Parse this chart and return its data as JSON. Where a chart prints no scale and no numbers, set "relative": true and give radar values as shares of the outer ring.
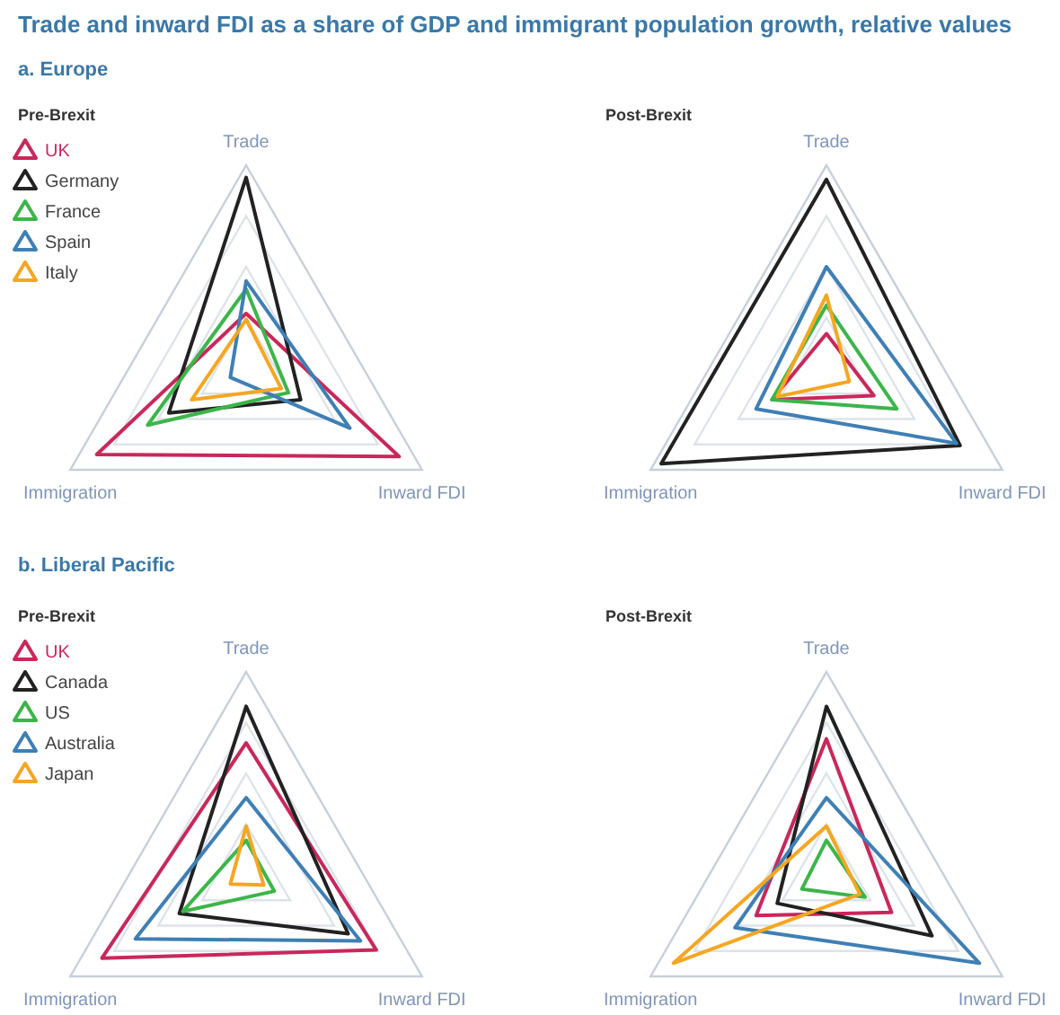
{
  "chart_data": [
    {
      "type": "radar",
      "title": "Pre-Brexit",
      "annotations": [
        "Trade and inward FDI as a share of GDP and immigrant population growth, relative values",
        "a. Europe"
      ],
      "categories": [
        "Trade",
        "Inward FDI",
        "Immigration"
      ],
      "relative": true,
      "grid": true,
      "legend": "top left",
      "series": [
        {
          "name": "UK",
          "color": "#c8285a",
          "values": [
            0.27,
            0.87,
            0.85
          ]
        },
        {
          "name": "Germany",
          "color": "#222222",
          "values": [
            0.94,
            0.31,
            0.44
          ]
        },
        {
          "name": "France",
          "color": "#3cb54a",
          "values": [
            0.39,
            0.24,
            0.56
          ]
        },
        {
          "name": "Spain",
          "color": "#3f7fb4",
          "values": [
            0.43,
            0.59,
            0.09
          ]
        },
        {
          "name": "Italy",
          "color": "#f5a623",
          "values": [
            0.24,
            0.2,
            0.31
          ]
        }
      ]
    },
    {
      "type": "radar",
      "title": "Post-Brexit",
      "categories": [
        "Trade",
        "Inward FDI",
        "Immigration"
      ],
      "relative": true,
      "grid": true,
      "series": [
        {
          "color": "#c8285a",
          "values": [
            0.17,
            0.27,
            0.31
          ]
        },
        {
          "color": "#222222",
          "values": [
            0.93,
            0.76,
            0.94
          ]
        },
        {
          "color": "#3cb54a",
          "values": [
            0.31,
            0.4,
            0.31
          ]
        },
        {
          "color": "#3f7fb4",
          "values": [
            0.5,
            0.74,
            0.4
          ]
        },
        {
          "color": "#f5a623",
          "values": [
            0.36,
            0.13,
            0.28
          ]
        }
      ]
    },
    {
      "type": "radar",
      "title": "Pre-Brexit",
      "annotations": [
        "b. Liberal Pacific"
      ],
      "categories": [
        "Trade",
        "Inward FDI",
        "Immigration"
      ],
      "relative": true,
      "grid": true,
      "legend": "top left",
      "series": [
        {
          "name": "UK",
          "color": "#c8285a",
          "values": [
            0.65,
            0.74,
            0.82
          ]
        },
        {
          "name": "Canada",
          "color": "#222222",
          "values": [
            0.83,
            0.58,
            0.38
          ]
        },
        {
          "name": "US",
          "color": "#3cb54a",
          "values": [
            0.17,
            0.16,
            0.36
          ]
        },
        {
          "name": "Australia",
          "color": "#3f7fb4",
          "values": [
            0.38,
            0.65,
            0.63
          ]
        },
        {
          "name": "Japan",
          "color": "#f5a623",
          "values": [
            0.24,
            0.1,
            0.09
          ]
        }
      ]
    },
    {
      "type": "radar",
      "title": "Post-Brexit",
      "categories": [
        "Trade",
        "Inward FDI",
        "Immigration"
      ],
      "relative": true,
      "grid": true,
      "series": [
        {
          "color": "#c8285a",
          "values": [
            0.67,
            0.37,
            0.4
          ]
        },
        {
          "color": "#222222",
          "values": [
            0.83,
            0.6,
            0.28
          ]
        },
        {
          "color": "#3cb54a",
          "values": [
            0.17,
            0.22,
            0.14
          ]
        },
        {
          "color": "#3f7fb4",
          "values": [
            0.38,
            0.87,
            0.52
          ]
        },
        {
          "color": "#f5a623",
          "values": [
            0.24,
            0.19,
            0.87
          ]
        }
      ]
    }
  ]
}
